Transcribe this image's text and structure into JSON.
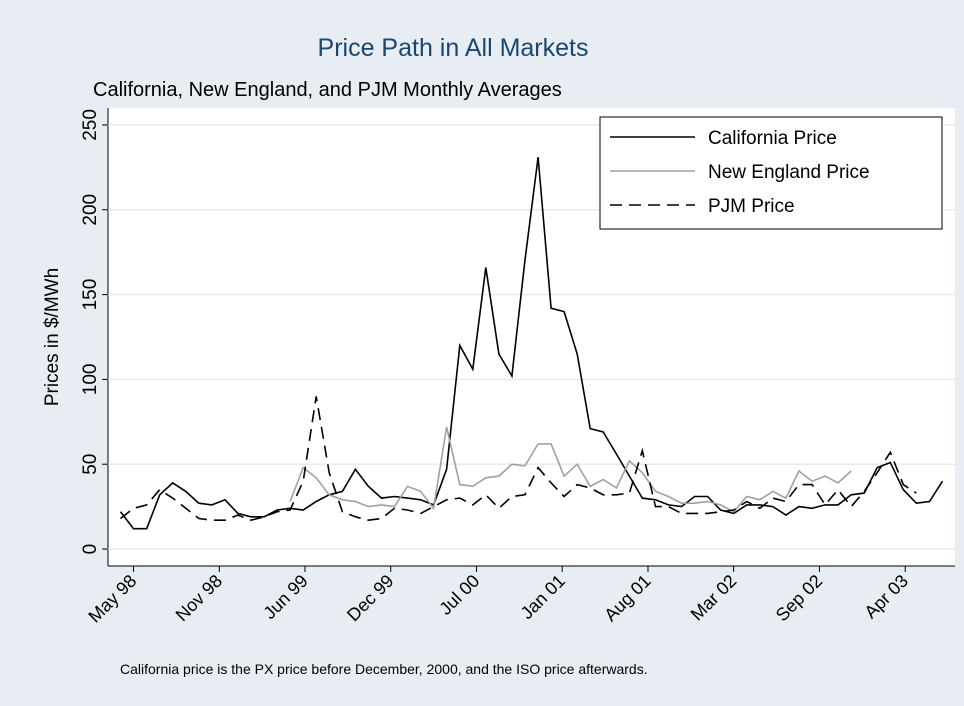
{
  "chart_data": {
    "type": "line",
    "title": "Price Path in All Markets",
    "subtitle": "California, New England, and PJM Monthly Averages",
    "y_label": "Prices in $/MWh",
    "note": "California price is the PX price before December, 2000, and the ISO price afterwards.",
    "legend": "top-right",
    "grid": true,
    "x": [
      1998.25,
      1998.333,
      1998.417,
      1998.5,
      1998.583,
      1998.667,
      1998.75,
      1998.833,
      1998.917,
      1999.0,
      1999.083,
      1999.167,
      1999.25,
      1999.333,
      1999.417,
      1999.5,
      1999.583,
      1999.667,
      1999.75,
      1999.833,
      1999.917,
      2000.0,
      2000.083,
      2000.167,
      2000.25,
      2000.333,
      2000.417,
      2000.5,
      2000.583,
      2000.667,
      2000.75,
      2000.833,
      2000.917,
      2001.0,
      2001.083,
      2001.167,
      2001.25,
      2001.333,
      2001.417,
      2001.5,
      2001.583,
      2001.667,
      2001.75,
      2001.833,
      2001.917,
      2002.0,
      2002.083,
      2002.167,
      2002.25,
      2002.333,
      2002.417,
      2002.5,
      2002.583,
      2002.667,
      2002.75,
      2002.833,
      2002.917,
      2003.0,
      2003.083,
      2003.167,
      2003.25,
      2003.333,
      2003.417,
      2003.5
    ],
    "xlim": [
      1998.17,
      2003.58
    ],
    "xticks": [
      {
        "value": 1998.333,
        "label": "May 98"
      },
      {
        "value": 1998.881,
        "label": "Nov 98"
      },
      {
        "value": 1999.428,
        "label": "Jun 99"
      },
      {
        "value": 1999.976,
        "label": "Dec 99"
      },
      {
        "value": 2000.524,
        "label": "Jul 00"
      },
      {
        "value": 2001.071,
        "label": "Jan 01"
      },
      {
        "value": 2001.619,
        "label": "Aug 01"
      },
      {
        "value": 2002.166,
        "label": "Mar 02"
      },
      {
        "value": 2002.714,
        "label": "Sep 02"
      },
      {
        "value": 2003.262,
        "label": "Apr 03"
      }
    ],
    "ylim": [
      -10,
      260
    ],
    "yticks": [
      0,
      50,
      100,
      150,
      200,
      250
    ],
    "series": [
      {
        "name": "California Price",
        "color": "#000000",
        "dash": "solid",
        "values": [
          22,
          12,
          12,
          32,
          39,
          34,
          27,
          26,
          29,
          21,
          19,
          19,
          23,
          24,
          23,
          28,
          32,
          34,
          47,
          37,
          30,
          31,
          30,
          29,
          26,
          47,
          120,
          106,
          166,
          115,
          102,
          170,
          231,
          142,
          140,
          115,
          71,
          69,
          56,
          43,
          30,
          29,
          26,
          25,
          31,
          31,
          23,
          21,
          26,
          26,
          25,
          20,
          25,
          24,
          26,
          26,
          32,
          33,
          48,
          51,
          35,
          27,
          28,
          40
        ]
      },
      {
        "name": "New England Price",
        "color": "#a0a0a0",
        "dash": "solid",
        "values": [
          null,
          null,
          null,
          null,
          null,
          null,
          null,
          null,
          null,
          null,
          null,
          null,
          null,
          28,
          48,
          42,
          32,
          29,
          28,
          25,
          26,
          25,
          37,
          34,
          24,
          72,
          38,
          37,
          42,
          43,
          50,
          49,
          62,
          62,
          43,
          50,
          37,
          41,
          36,
          52,
          45,
          34,
          31,
          27,
          27,
          28,
          26,
          22,
          31,
          29,
          34,
          30,
          46,
          40,
          43,
          39,
          46,
          null,
          null,
          null,
          null,
          null,
          null,
          null
        ]
      },
      {
        "name": "PJM Price",
        "color": "#000000",
        "dash": "dashed",
        "values": [
          18,
          24,
          26,
          35,
          30,
          24,
          18,
          17,
          17,
          20,
          17,
          19,
          22,
          23,
          40,
          90,
          45,
          22,
          19,
          17,
          18,
          24,
          23,
          21,
          25,
          29,
          30,
          26,
          32,
          24,
          31,
          32,
          48,
          39,
          31,
          38,
          36,
          32,
          32,
          33,
          58,
          25,
          25,
          21,
          21,
          21,
          22,
          23,
          28,
          24,
          30,
          28,
          38,
          38,
          26,
          35,
          25,
          34,
          45,
          57,
          38,
          33,
          null,
          null
        ]
      }
    ]
  }
}
